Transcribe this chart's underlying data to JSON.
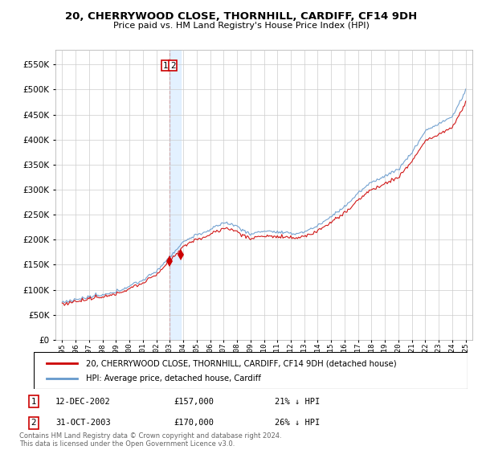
{
  "title": "20, CHERRYWOOD CLOSE, THORNHILL, CARDIFF, CF14 9DH",
  "subtitle": "Price paid vs. HM Land Registry's House Price Index (HPI)",
  "legend_label_red": "20, CHERRYWOOD CLOSE, THORNHILL, CARDIFF, CF14 9DH (detached house)",
  "legend_label_blue": "HPI: Average price, detached house, Cardiff",
  "footnote": "Contains HM Land Registry data © Crown copyright and database right 2024.\nThis data is licensed under the Open Government Licence v3.0.",
  "purchase1_date": "12-DEC-2002",
  "purchase1_price": 157000,
  "purchase1_label": "£157,000",
  "purchase1_pct": "21% ↓ HPI",
  "purchase2_date": "31-OCT-2003",
  "purchase2_price": 170000,
  "purchase2_label": "£170,000",
  "purchase2_pct": "26% ↓ HPI",
  "ylim": [
    0,
    580000
  ],
  "yticks": [
    0,
    50000,
    100000,
    150000,
    200000,
    250000,
    300000,
    350000,
    400000,
    450000,
    500000,
    550000
  ],
  "background_color": "#ffffff",
  "grid_color": "#cccccc",
  "red_color": "#cc0000",
  "blue_color": "#6699cc",
  "vline_color": "#cc0000",
  "vband_color": "#ddeeff",
  "p1_year_float": 2002.958,
  "p2_year_float": 2003.833
}
